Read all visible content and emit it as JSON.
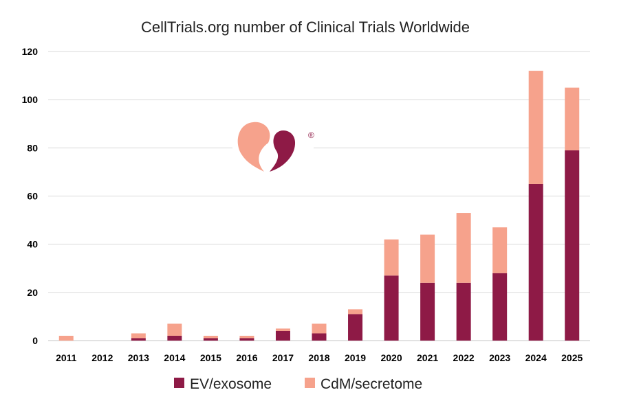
{
  "chart_data": {
    "type": "bar",
    "stacked": true,
    "title": "CellTrials.org number of Clinical Trials Worldwide",
    "xlabel": "",
    "ylabel": "",
    "ylim": [
      0,
      120
    ],
    "yticks": [
      0,
      20,
      40,
      60,
      80,
      100,
      120
    ],
    "grid": true,
    "legend_position": "bottom",
    "categories": [
      "2011",
      "2012",
      "2013",
      "2014",
      "2015",
      "2016",
      "2017",
      "2018",
      "2019",
      "2020",
      "2021",
      "2022",
      "2023",
      "2024",
      "2025"
    ],
    "series": [
      {
        "name": "EV/exosome",
        "color": "#8e1a46",
        "values": [
          0,
          0,
          1,
          2,
          1,
          1,
          4,
          3,
          11,
          27,
          24,
          24,
          28,
          65,
          79
        ]
      },
      {
        "name": "CdM/secretome",
        "color": "#f6a28c",
        "values": [
          2,
          0,
          2,
          5,
          1,
          1,
          1,
          4,
          2,
          15,
          20,
          29,
          19,
          47,
          26
        ]
      }
    ],
    "logo": {
      "text": "®"
    }
  }
}
